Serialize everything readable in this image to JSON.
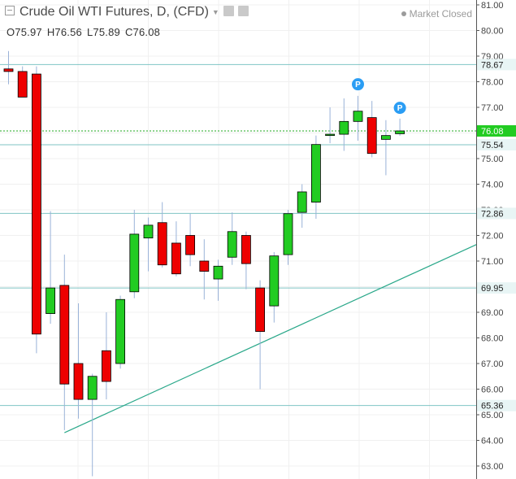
{
  "header": {
    "title": "Crude Oil WTI Futures, D, (CFD)",
    "status": "Market Closed",
    "ohlc": {
      "open": "O75.97",
      "high": "H76.56",
      "low": "L75.89",
      "close": "C76.08"
    }
  },
  "colors": {
    "up": "#22cc22",
    "down": "#ee0000",
    "wick": "#9ab2d8",
    "level_line": "#7fc4c4",
    "trendline": "#2aa88a",
    "current_price": "#22aa22",
    "marker": "#2a9df4",
    "axis_text": "#444444"
  },
  "chart_data": {
    "type": "candlestick",
    "yaxis": {
      "ylim": [
        62.6,
        81.3
      ],
      "ticks": [
        "81.00",
        "80.00",
        "79.00",
        "78.00",
        "77.00",
        "76.00",
        "75.00",
        "74.00",
        "73.00",
        "72.00",
        "71.00",
        "70.00",
        "69.00",
        "68.00",
        "67.00",
        "66.00",
        "65.00",
        "64.00",
        "63.00"
      ]
    },
    "candles": [
      {
        "o": 78.5,
        "h": 79.2,
        "l": 77.9,
        "c": 78.4
      },
      {
        "o": 78.4,
        "h": 78.6,
        "l": 77.4,
        "c": 77.4
      },
      {
        "o": 78.3,
        "h": 78.6,
        "l": 67.4,
        "c": 68.15
      },
      {
        "o": 68.95,
        "h": 72.95,
        "l": 68.55,
        "c": 69.95
      },
      {
        "o": 70.05,
        "h": 71.25,
        "l": 64.4,
        "c": 66.2
      },
      {
        "o": 67.0,
        "h": 69.35,
        "l": 64.85,
        "c": 65.6
      },
      {
        "o": 65.6,
        "h": 66.6,
        "l": 62.6,
        "c": 66.5
      },
      {
        "o": 67.5,
        "h": 69.0,
        "l": 65.6,
        "c": 66.3
      },
      {
        "o": 67.0,
        "h": 69.65,
        "l": 66.8,
        "c": 69.5
      },
      {
        "o": 69.8,
        "h": 73.0,
        "l": 69.55,
        "c": 72.05
      },
      {
        "o": 71.9,
        "h": 72.7,
        "l": 70.6,
        "c": 72.4
      },
      {
        "o": 72.5,
        "h": 73.3,
        "l": 70.75,
        "c": 70.85
      },
      {
        "o": 71.7,
        "h": 72.55,
        "l": 70.4,
        "c": 70.5
      },
      {
        "o": 72.0,
        "h": 72.85,
        "l": 70.8,
        "c": 71.25
      },
      {
        "o": 71.0,
        "h": 71.85,
        "l": 69.5,
        "c": 70.6
      },
      {
        "o": 70.3,
        "h": 71.05,
        "l": 69.45,
        "c": 70.8
      },
      {
        "o": 71.15,
        "h": 72.9,
        "l": 70.85,
        "c": 72.15
      },
      {
        "o": 72.0,
        "h": 72.15,
        "l": 69.9,
        "c": 70.9
      },
      {
        "o": 69.95,
        "h": 70.25,
        "l": 66.0,
        "c": 68.25
      },
      {
        "o": 69.25,
        "h": 71.35,
        "l": 68.6,
        "c": 71.2
      },
      {
        "o": 71.25,
        "h": 73.0,
        "l": 70.85,
        "c": 72.85
      },
      {
        "o": 72.9,
        "h": 74.0,
        "l": 72.3,
        "c": 73.7
      },
      {
        "o": 73.3,
        "h": 75.9,
        "l": 72.65,
        "c": 75.55
      },
      {
        "o": 75.9,
        "h": 77.0,
        "l": 75.6,
        "c": 75.95
      },
      {
        "o": 75.95,
        "h": 77.35,
        "l": 75.3,
        "c": 76.45
      },
      {
        "o": 76.45,
        "h": 77.45,
        "l": 75.7,
        "c": 76.85
      },
      {
        "o": 76.6,
        "h": 77.25,
        "l": 75.05,
        "c": 75.2
      },
      {
        "o": 75.75,
        "h": 76.5,
        "l": 74.35,
        "c": 75.9
      },
      {
        "o": 75.97,
        "h": 76.56,
        "l": 75.89,
        "c": 76.08
      }
    ],
    "levels": [
      {
        "value": 78.67,
        "label": "78.67"
      },
      {
        "value": 75.54,
        "label": "75.54"
      },
      {
        "value": 72.86,
        "label": "72.86"
      },
      {
        "value": 69.95,
        "label": "69.95"
      },
      {
        "value": 65.36,
        "label": "65.36"
      }
    ],
    "current_price": {
      "value": 76.08,
      "label": "76.08"
    },
    "trendline": {
      "from": {
        "candle": 4,
        "value": 64.3
      },
      "to": {
        "candle": 34.5,
        "value": 71.9
      }
    },
    "markers": [
      {
        "candle": 25,
        "value": 77.9,
        "label": "P"
      },
      {
        "candle": 28,
        "value": 76.98,
        "label": "P"
      }
    ],
    "grid": true
  }
}
